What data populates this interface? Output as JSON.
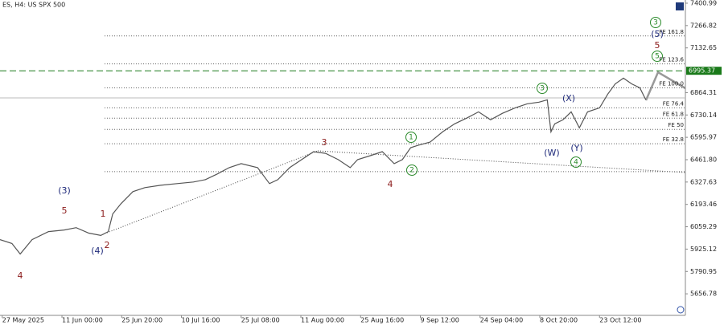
{
  "chart_data": {
    "type": "line",
    "title": "ES, H4:  US SPX 500",
    "xlim": [
      0,
      918
    ],
    "ylim": [
      5527.4,
      7420.16
    ],
    "xticks": [
      {
        "value": 3,
        "label": "27 May 2025"
      },
      {
        "value": 83,
        "label": "11 Jun 00:00"
      },
      {
        "value": 163,
        "label": "25 Jun 20:00"
      },
      {
        "value": 243,
        "label": "10 Jul 16:00"
      },
      {
        "value": 323,
        "label": "25 Jul 08:00"
      },
      {
        "value": 403,
        "label": "11 Aug 00:00"
      },
      {
        "value": 483,
        "label": "25 Aug 16:00"
      },
      {
        "value": 563,
        "label": "9 Sep 12:00"
      },
      {
        "value": 643,
        "label": "24 Sep 04:00"
      },
      {
        "value": 723,
        "label": "8 Oct 20:00"
      },
      {
        "value": 803,
        "label": "23 Oct 12:00"
      }
    ],
    "yticks": [
      7400.99,
      7266.82,
      7132.65,
      6864.31,
      6730.14,
      6595.97,
      {
        "value": 6461.8,
        "label": "6461.80"
      },
      6327.63,
      6193.46,
      6059.29,
      5925.12,
      5790.95,
      5656.78
    ],
    "series": [
      {
        "color": "#555555",
        "x": [
          0,
          16,
          27,
          43,
          65,
          86,
          102,
          119,
          135,
          145,
          151,
          162,
          178,
          194,
          215,
          237,
          259,
          275,
          291,
          307,
          323,
          345,
          361,
          372,
          388,
          404,
          420,
          436,
          453,
          469,
          479,
          496,
          512,
          528,
          539,
          550,
          560,
          576,
          593,
          609,
          625,
          641,
          657,
          673,
          690,
          706,
          722,
          733,
          738,
          743,
          754,
          765,
          776,
          787,
          803,
          814,
          824,
          835,
          846,
          857,
          865
        ],
        "values": [
          5982,
          5959,
          5896,
          5982,
          6030,
          6040,
          6054,
          6021,
          6007,
          6030,
          6136,
          6198,
          6270,
          6294,
          6308,
          6318,
          6328,
          6342,
          6376,
          6414,
          6438,
          6414,
          6318,
          6342,
          6414,
          6462,
          6510,
          6500,
          6462,
          6414,
          6462,
          6486,
          6510,
          6438,
          6462,
          6534,
          6548,
          6567,
          6630,
          6677,
          6711,
          6749,
          6701,
          6740,
          6773,
          6797,
          6807,
          6821,
          6629,
          6677,
          6701,
          6749,
          6653,
          6749,
          6773,
          6855,
          6917,
          6951,
          6917,
          6893,
          6821
        ]
      }
    ],
    "target_level": {
      "value": 6995.37,
      "label": "6995.37",
      "color": "#1a7a1a"
    },
    "fib_levels": [
      {
        "value": 7204.5,
        "label": "FE 161.8"
      },
      {
        "value": 7036.8,
        "label": "FE 123.6"
      },
      {
        "value": 6893.0,
        "label": "FE 100.0"
      },
      {
        "value": 6773.2,
        "label": "FE 76.4"
      },
      {
        "value": 6710.9,
        "label": "FE 61.8"
      },
      {
        "value": 6643.8,
        "label": "FE 50"
      },
      {
        "value": 6557.6,
        "label": "FE 32.8"
      }
    ],
    "guide_levels": [
      6389.9
    ],
    "annotations": [
      {
        "text": "(3)",
        "color": "#1f2a7a"
      },
      {
        "text": "5",
        "color": "#8b1a1a"
      },
      {
        "text": "4",
        "color": "#8b1a1a"
      },
      {
        "text": "1",
        "color": "#8b1a1a"
      },
      {
        "text": "2",
        "color": "#8b1a1a"
      },
      {
        "text": "(4)",
        "color": "#1f2a7a"
      },
      {
        "text": "3",
        "color": "#8b1a1a"
      },
      {
        "text": "4",
        "color": "#8b1a1a"
      },
      {
        "text": "1",
        "color": "#2a8a2a",
        "circled": true
      },
      {
        "text": "2",
        "color": "#2a8a2a",
        "circled": true
      },
      {
        "text": "3",
        "color": "#2a8a2a",
        "circled": true
      },
      {
        "text": "(X)",
        "color": "#1f2a7a"
      },
      {
        "text": "(W)",
        "color": "#1f2a7a"
      },
      {
        "text": "(Y)",
        "color": "#1f2a7a"
      },
      {
        "text": "4",
        "color": "#2a8a2a",
        "circled": true
      },
      {
        "text": "3",
        "color": "#2a8a2a",
        "circled": true
      },
      {
        "text": "(5)",
        "color": "#1f2a7a"
      },
      {
        "text": "5",
        "color": "#8b1a1a"
      },
      {
        "text": "5",
        "color": "#2a8a2a",
        "circled": true
      }
    ]
  }
}
